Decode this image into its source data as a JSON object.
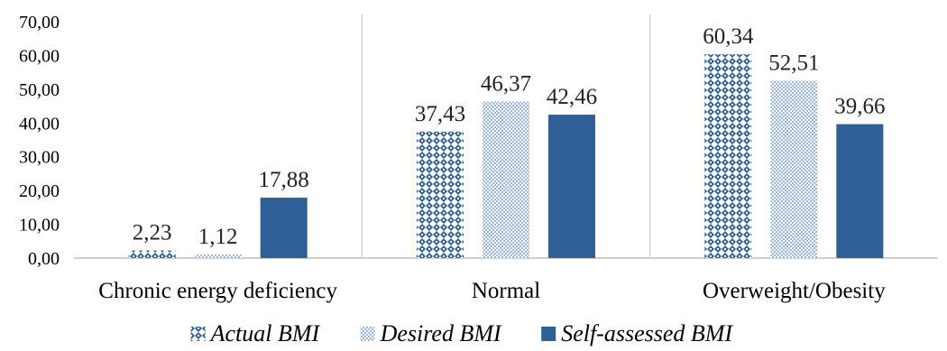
{
  "chart_data": {
    "type": "bar",
    "categories": [
      "Chronic energy deficiency",
      "Normal",
      "Overweight/Obesity"
    ],
    "series": [
      {
        "name": "Actual BMI",
        "values": [
          2.23,
          37.43,
          60.34
        ],
        "labels": [
          "2,23",
          "37,43",
          "60,34"
        ],
        "color": "#2e5f96",
        "pattern": "checker-diamond"
      },
      {
        "name": "Desired BMI",
        "values": [
          1.12,
          46.37,
          52.51
        ],
        "labels": [
          "1,12",
          "46,37",
          "52,51"
        ],
        "color": "#9bb7de",
        "pattern": "dotted"
      },
      {
        "name": "Self-assessed BMI",
        "values": [
          17.88,
          42.46,
          39.66
        ],
        "labels": [
          "17,88",
          "42,46",
          "39,66"
        ],
        "color": "#2e5f96",
        "pattern": "solid"
      }
    ],
    "yticks": [
      "0,00",
      "10,00",
      "20,00",
      "30,00",
      "40,00",
      "50,00",
      "60,00",
      "70,00"
    ],
    "ylim": [
      0,
      70
    ],
    "grid": false,
    "category_separators": true,
    "legend_position": "bottom"
  }
}
